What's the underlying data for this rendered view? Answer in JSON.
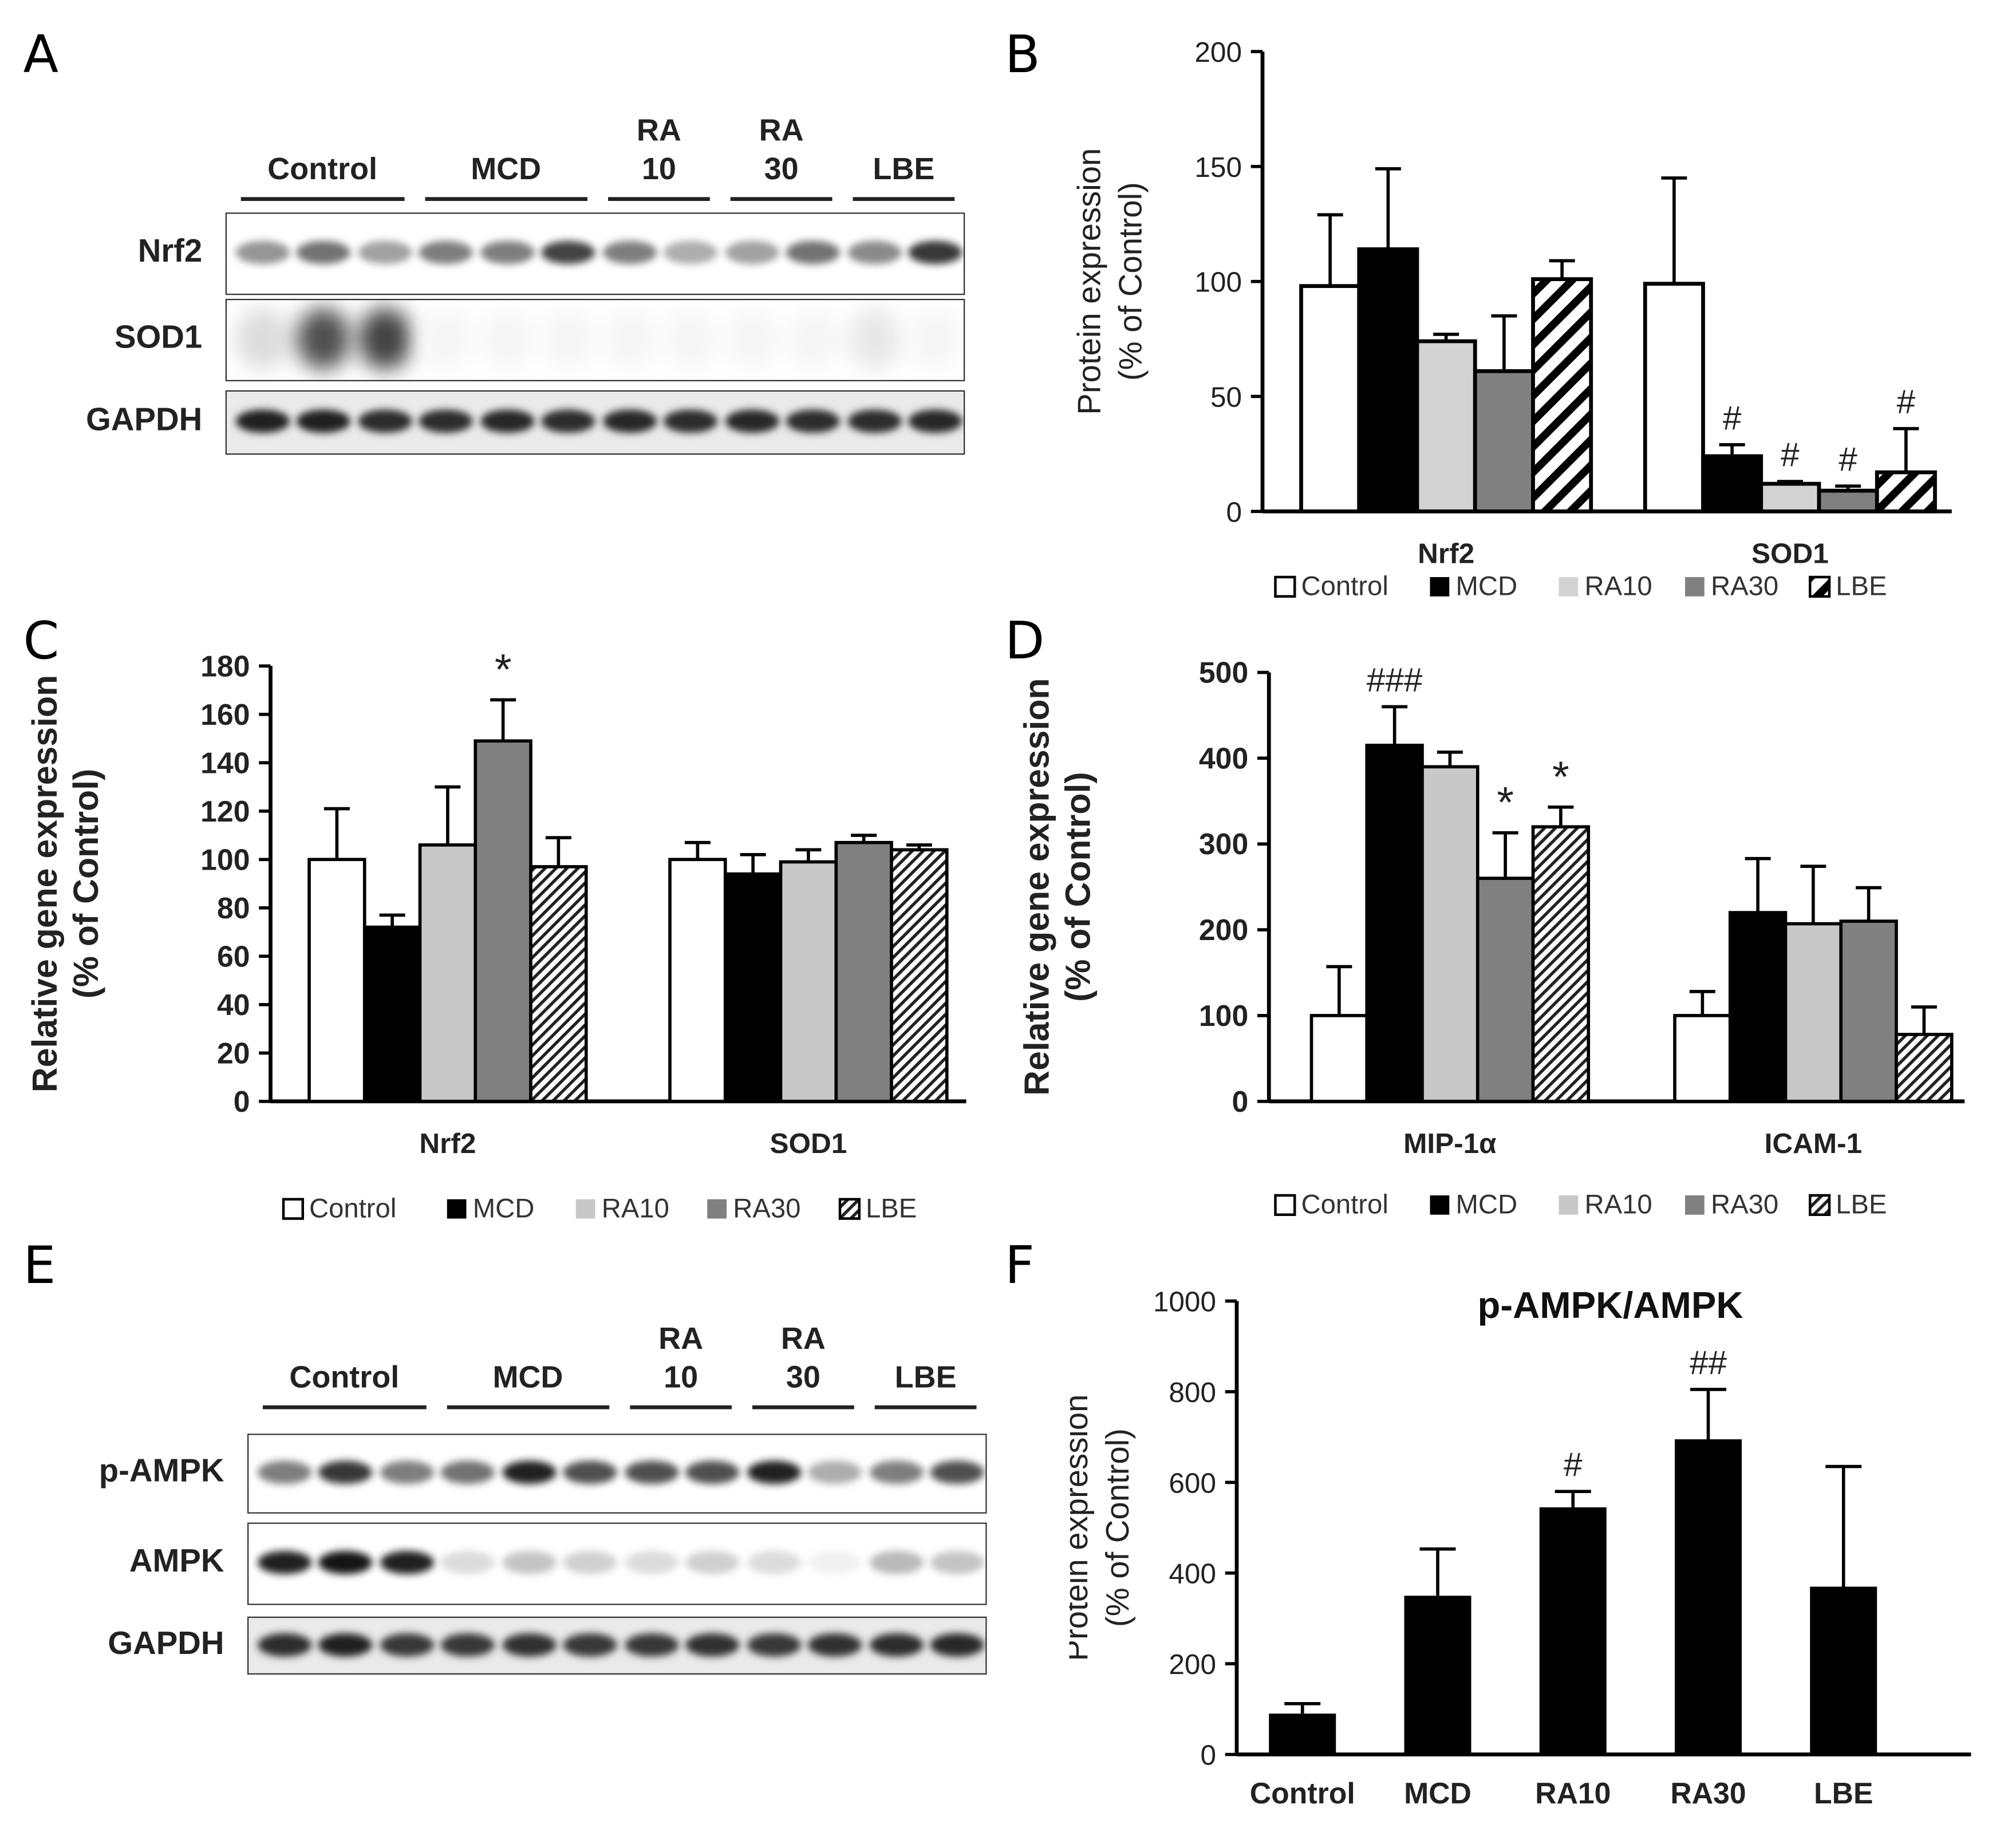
{
  "panels": {
    "A": {
      "letter": "A"
    },
    "B": {
      "letter": "B"
    },
    "C": {
      "letter": "C"
    },
    "D": {
      "letter": "D"
    },
    "E": {
      "letter": "E"
    },
    "F": {
      "letter": "F"
    }
  },
  "blot_A": {
    "groups": [
      {
        "label": "Control",
        "lanes": 3
      },
      {
        "label": "MCD",
        "lanes": 3
      },
      {
        "label": "RA\n10",
        "lanes": 2
      },
      {
        "label": "RA\n30",
        "lanes": 2
      },
      {
        "label": "LBE",
        "lanes": 2
      }
    ],
    "rows": [
      {
        "label": "Nrf2",
        "intensity": [
          0.45,
          0.6,
          0.4,
          0.55,
          0.55,
          0.8,
          0.55,
          0.35,
          0.4,
          0.6,
          0.5,
          0.85
        ],
        "kind": "band"
      },
      {
        "label": "SOD1",
        "intensity": [
          0.15,
          0.75,
          0.8,
          0.04,
          0.04,
          0.04,
          0.04,
          0.04,
          0.04,
          0.04,
          0.1,
          0.04
        ],
        "kind": "smear"
      },
      {
        "label": "GAPDH",
        "intensity": [
          0.95,
          0.95,
          0.9,
          0.9,
          0.92,
          0.9,
          0.92,
          0.9,
          0.92,
          0.9,
          0.9,
          0.92
        ],
        "kind": "loading"
      }
    ]
  },
  "blot_E": {
    "groups": [
      {
        "label": "Control",
        "lanes": 3
      },
      {
        "label": "MCD",
        "lanes": 3
      },
      {
        "label": "RA\n10",
        "lanes": 2
      },
      {
        "label": "RA\n30",
        "lanes": 2
      },
      {
        "label": "LBE",
        "lanes": 2
      }
    ],
    "rows": [
      {
        "label": "p-AMPK",
        "intensity": [
          0.55,
          0.85,
          0.55,
          0.6,
          0.95,
          0.75,
          0.75,
          0.75,
          0.95,
          0.35,
          0.55,
          0.75
        ],
        "kind": "band"
      },
      {
        "label": "AMPK",
        "intensity": [
          0.95,
          1.0,
          0.95,
          0.15,
          0.25,
          0.2,
          0.15,
          0.2,
          0.15,
          0.06,
          0.3,
          0.25
        ],
        "kind": "band"
      },
      {
        "label": "GAPDH",
        "intensity": [
          0.9,
          0.95,
          0.85,
          0.85,
          0.88,
          0.85,
          0.85,
          0.88,
          0.85,
          0.88,
          0.9,
          0.92
        ],
        "kind": "loading"
      }
    ]
  },
  "legend_items": [
    "Control",
    "MCD",
    "RA10",
    "RA30",
    "LBE"
  ],
  "chart_data": [
    {
      "id": "B",
      "type": "bar",
      "ylabel": "Protein expression\n(% of Control)",
      "ylim": [
        0,
        200
      ],
      "yticks": [
        0,
        50,
        100,
        150,
        200
      ],
      "categories": [
        "Nrf2",
        "SOD1"
      ],
      "series": [
        {
          "name": "Control",
          "values": [
            98,
            99
          ],
          "errors": [
            31,
            46
          ],
          "fill": "#ffffff",
          "pattern": "none"
        },
        {
          "name": "MCD",
          "values": [
            114,
            24
          ],
          "errors": [
            35,
            5
          ],
          "fill": "#000000",
          "pattern": "none"
        },
        {
          "name": "RA10",
          "values": [
            74,
            12
          ],
          "errors": [
            3,
            1
          ],
          "fill": "#d3d3d3",
          "pattern": "none"
        },
        {
          "name": "RA30",
          "values": [
            61,
            9
          ],
          "errors": [
            24,
            2
          ],
          "fill": "#808080",
          "pattern": "none"
        },
        {
          "name": "LBE",
          "values": [
            101,
            17
          ],
          "errors": [
            8,
            19
          ],
          "fill": "#ffffff",
          "pattern": "wide-hatch"
        }
      ],
      "annotations": [
        [
          "",
          ""
        ],
        [
          "",
          "#"
        ],
        [
          "",
          "#"
        ],
        [
          "",
          "#"
        ],
        [
          "",
          "#"
        ]
      ]
    },
    {
      "id": "C",
      "type": "bar",
      "ylabel": "Relative gene expression\n(% of Control)",
      "ylim": [
        0,
        180
      ],
      "yticks": [
        0,
        20,
        40,
        60,
        80,
        100,
        120,
        140,
        160,
        180
      ],
      "categories": [
        "Nrf2",
        "SOD1"
      ],
      "series": [
        {
          "name": "Control",
          "values": [
            100,
            100
          ],
          "errors": [
            21,
            7
          ],
          "fill": "#ffffff",
          "pattern": "none"
        },
        {
          "name": "MCD",
          "values": [
            72,
            94
          ],
          "errors": [
            5,
            8
          ],
          "fill": "#000000",
          "pattern": "none"
        },
        {
          "name": "RA10",
          "values": [
            106,
            99
          ],
          "errors": [
            24,
            5
          ],
          "fill": "#c8c8c8",
          "pattern": "none"
        },
        {
          "name": "RA30",
          "values": [
            149,
            107
          ],
          "errors": [
            17,
            3
          ],
          "fill": "#808080",
          "pattern": "none"
        },
        {
          "name": "LBE",
          "values": [
            97,
            104
          ],
          "errors": [
            12,
            2
          ],
          "fill": "#ffffff",
          "pattern": "fine-hatch"
        }
      ],
      "annotations": [
        [
          "",
          ""
        ],
        [
          "",
          ""
        ],
        [
          "",
          ""
        ],
        [
          "*",
          ""
        ],
        [
          "",
          ""
        ]
      ]
    },
    {
      "id": "D",
      "type": "bar",
      "ylabel": "Relative gene expression\n(% of Control)",
      "ylim": [
        0,
        500
      ],
      "yticks": [
        0,
        100,
        200,
        300,
        400,
        500
      ],
      "categories": [
        "MIP-1α",
        "ICAM-1"
      ],
      "series": [
        {
          "name": "Control",
          "values": [
            100,
            100
          ],
          "errors": [
            57,
            28
          ],
          "fill": "#ffffff",
          "pattern": "none"
        },
        {
          "name": "MCD",
          "values": [
            415,
            220
          ],
          "errors": [
            45,
            63
          ],
          "fill": "#000000",
          "pattern": "none"
        },
        {
          "name": "RA10",
          "values": [
            390,
            207
          ],
          "errors": [
            17,
            67
          ],
          "fill": "#c8c8c8",
          "pattern": "none"
        },
        {
          "name": "RA30",
          "values": [
            260,
            210
          ],
          "errors": [
            53,
            39
          ],
          "fill": "#808080",
          "pattern": "none"
        },
        {
          "name": "LBE",
          "values": [
            320,
            78
          ],
          "errors": [
            23,
            32
          ],
          "fill": "#ffffff",
          "pattern": "fine-hatch"
        }
      ],
      "annotations": [
        [
          "",
          ""
        ],
        [
          "###",
          ""
        ],
        [
          "",
          ""
        ],
        [
          "*",
          ""
        ],
        [
          "*",
          ""
        ]
      ]
    },
    {
      "id": "F",
      "type": "bar",
      "title": "p-AMPK/AMPK",
      "ylabel": "Protein expression\n(% of Control)",
      "ylim": [
        0,
        1000
      ],
      "yticks": [
        0,
        200,
        400,
        600,
        800,
        1000
      ],
      "categories": [
        "Control",
        "MCD",
        "RA10",
        "RA30",
        "LBE"
      ],
      "values": [
        90,
        350,
        545,
        695,
        370
      ],
      "errors": [
        22,
        103,
        35,
        110,
        265
      ],
      "annotations": [
        "",
        "",
        "#",
        "##",
        ""
      ]
    }
  ]
}
